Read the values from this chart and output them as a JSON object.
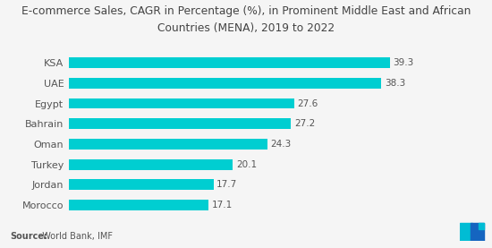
{
  "title_line1": "E-commerce Sales, CAGR in Percentage (%), in Prominent Middle East and African",
  "title_line2": "Countries (MENA), 2019 to 2022",
  "categories": [
    "Morocco",
    "Jordan",
    "Turkey",
    "Oman",
    "Bahrain",
    "Egypt",
    "UAE",
    "KSA"
  ],
  "values": [
    17.1,
    17.7,
    20.1,
    24.3,
    27.2,
    27.6,
    38.3,
    39.3
  ],
  "bar_color": "#00CED1",
  "background_color": "#f5f5f5",
  "xlim": [
    0,
    44
  ],
  "source_bold": "Source:",
  "source_rest": "  World Bank, IMF",
  "title_fontsize": 8.8,
  "label_fontsize": 8.0,
  "value_fontsize": 7.5,
  "source_fontsize": 7.0,
  "bar_height": 0.52,
  "logo_color1": "#00BCD4",
  "logo_color2": "#1565C0"
}
